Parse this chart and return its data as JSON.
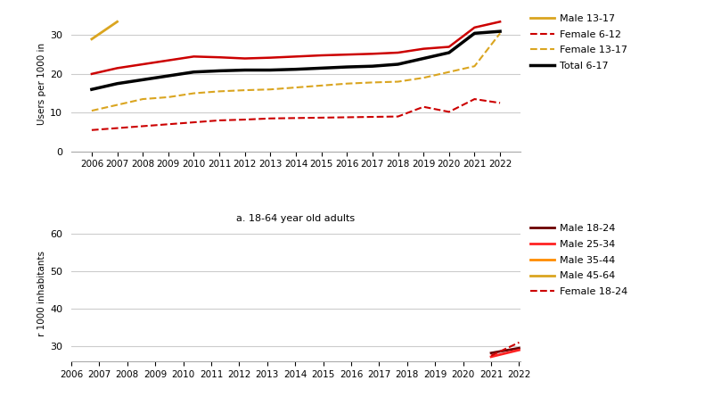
{
  "years": [
    2006,
    2007,
    2008,
    2009,
    2010,
    2011,
    2012,
    2013,
    2014,
    2015,
    2016,
    2017,
    2018,
    2019,
    2020,
    2021,
    2022
  ],
  "top_chart": {
    "ylabel": "Users per 1000 in",
    "ylim": [
      0,
      35
    ],
    "yticks": [
      0,
      10,
      20,
      30
    ],
    "series": {
      "Male 13-17": {
        "color": "#DAA520",
        "linestyle": "solid",
        "linewidth": 2.0,
        "values": [
          29.0,
          33.5,
          null,
          null,
          null,
          null,
          null,
          null,
          null,
          null,
          null,
          null,
          null,
          null,
          null,
          null,
          null
        ]
      },
      "Male 6-12": {
        "color": "#cc0000",
        "linestyle": "solid",
        "linewidth": 1.8,
        "values": [
          20.0,
          21.5,
          22.5,
          23.5,
          24.5,
          24.3,
          24.0,
          24.2,
          24.5,
          24.8,
          25.0,
          25.2,
          25.5,
          26.5,
          27.0,
          32.0,
          33.5
        ]
      },
      "Female 6-12": {
        "color": "#cc0000",
        "linestyle": "dashed",
        "linewidth": 1.5,
        "values": [
          5.5,
          6.0,
          6.5,
          7.0,
          7.5,
          8.0,
          8.2,
          8.5,
          8.6,
          8.7,
          8.8,
          8.9,
          9.0,
          11.5,
          10.2,
          13.5,
          12.5
        ]
      },
      "Female 13-17": {
        "color": "#DAA520",
        "linestyle": "dashed",
        "linewidth": 1.5,
        "values": [
          10.5,
          12.0,
          13.5,
          14.0,
          15.0,
          15.5,
          15.8,
          16.0,
          16.5,
          17.0,
          17.5,
          17.8,
          18.0,
          19.0,
          20.5,
          22.0,
          30.5
        ]
      },
      "Total 6-17": {
        "color": "#000000",
        "linestyle": "solid",
        "linewidth": 2.5,
        "values": [
          16.0,
          17.5,
          18.5,
          19.5,
          20.5,
          20.8,
          21.0,
          21.0,
          21.2,
          21.5,
          21.8,
          22.0,
          22.5,
          24.0,
          25.5,
          30.5,
          31.0
        ]
      }
    },
    "legend": [
      {
        "label": "Male 13-17",
        "color": "#DAA520",
        "linestyle": "solid",
        "linewidth": 2.0
      },
      {
        "label": "Female 6-12",
        "color": "#cc0000",
        "linestyle": "dashed",
        "linewidth": 1.5
      },
      {
        "label": "Female 13-17",
        "color": "#DAA520",
        "linestyle": "dashed",
        "linewidth": 1.5
      },
      {
        "label": "Total 6-17",
        "color": "#000000",
        "linestyle": "solid",
        "linewidth": 2.5
      }
    ]
  },
  "bottom_chart": {
    "title": "a. 18-64 year old adults",
    "ylabel": "r 1000 inhabitants",
    "ylim": [
      26,
      62
    ],
    "yticks": [
      30,
      40,
      50,
      60
    ],
    "series": {
      "Male 18-24": {
        "color": "#6b0000",
        "linestyle": "solid",
        "linewidth": 2.0,
        "values": [
          null,
          null,
          null,
          null,
          null,
          null,
          null,
          null,
          null,
          null,
          null,
          null,
          null,
          null,
          null,
          28.2,
          29.5
        ]
      },
      "Male 25-34": {
        "color": "#ff2222",
        "linestyle": "solid",
        "linewidth": 2.0,
        "values": [
          null,
          null,
          null,
          null,
          null,
          null,
          null,
          null,
          null,
          null,
          null,
          null,
          null,
          null,
          null,
          27.2,
          29.0
        ]
      },
      "Male 35-44": {
        "color": "#ff8c00",
        "linestyle": "solid",
        "linewidth": 2.0,
        "values": [
          null,
          null,
          null,
          null,
          null,
          null,
          null,
          null,
          null,
          null,
          null,
          null,
          null,
          null,
          null,
          null,
          null
        ]
      },
      "Male 45-64": {
        "color": "#DAA520",
        "linestyle": "solid",
        "linewidth": 2.0,
        "values": [
          null,
          null,
          null,
          null,
          null,
          null,
          null,
          null,
          null,
          null,
          null,
          null,
          null,
          null,
          null,
          null,
          null
        ]
      },
      "Female 18-24": {
        "color": "#cc0000",
        "linestyle": "dashed",
        "linewidth": 1.5,
        "values": [
          null,
          null,
          null,
          null,
          null,
          null,
          null,
          null,
          null,
          null,
          null,
          null,
          null,
          null,
          null,
          27.5,
          31.0
        ]
      }
    },
    "legend": [
      {
        "label": "Male 18-24",
        "color": "#6b0000",
        "linestyle": "solid",
        "linewidth": 2.0
      },
      {
        "label": "Male 25-34",
        "color": "#ff2222",
        "linestyle": "solid",
        "linewidth": 2.0
      },
      {
        "label": "Male 35-44",
        "color": "#ff8c00",
        "linestyle": "solid",
        "linewidth": 2.0
      },
      {
        "label": "Male 45-64",
        "color": "#DAA520",
        "linestyle": "solid",
        "linewidth": 2.0
      },
      {
        "label": "Female 18-24",
        "color": "#cc0000",
        "linestyle": "dashed",
        "linewidth": 1.5
      }
    ]
  },
  "background_color": "#ffffff",
  "grid_color": "#cccccc",
  "fig_width": 8.0,
  "fig_height": 4.45,
  "dpi": 100
}
